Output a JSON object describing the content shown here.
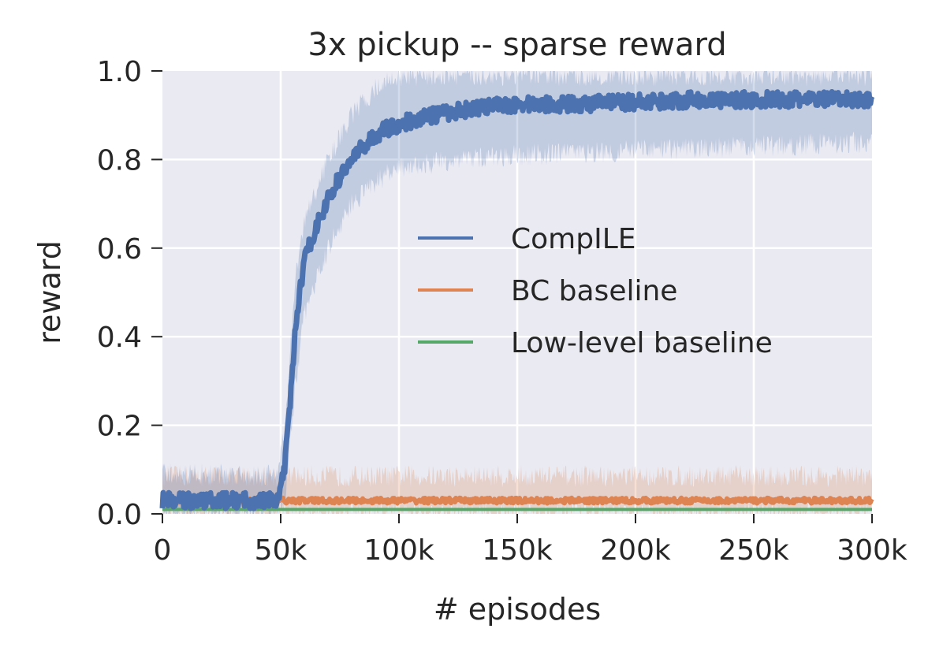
{
  "chart_data": {
    "type": "line",
    "title": "3x pickup -- sparse reward",
    "xlabel": "# episodes",
    "ylabel": "reward",
    "xlim": [
      0,
      300000
    ],
    "ylim": [
      0,
      1.0
    ],
    "x_ticks": [
      0,
      50000,
      100000,
      150000,
      200000,
      250000,
      300000
    ],
    "x_tick_labels": [
      "0",
      "50k",
      "100k",
      "150k",
      "200k",
      "250k",
      "300k"
    ],
    "y_ticks": [
      0,
      0.2,
      0.4,
      0.6,
      0.8,
      1.0
    ],
    "y_tick_labels": [
      "0.0",
      "0.2",
      "0.4",
      "0.6",
      "0.8",
      "1.0"
    ],
    "grid": true,
    "legend_position": "center-right",
    "series": [
      {
        "name": "CompILE",
        "color": "#4c72b0",
        "points": [
          [
            0,
            0.03
          ],
          [
            10000,
            0.03
          ],
          [
            20000,
            0.03
          ],
          [
            30000,
            0.03
          ],
          [
            40000,
            0.03
          ],
          [
            48000,
            0.03
          ],
          [
            50000,
            0.05
          ],
          [
            52000,
            0.12
          ],
          [
            54000,
            0.25
          ],
          [
            56000,
            0.4
          ],
          [
            58000,
            0.5
          ],
          [
            60000,
            0.57
          ],
          [
            63000,
            0.62
          ],
          [
            66000,
            0.66
          ],
          [
            70000,
            0.71
          ],
          [
            75000,
            0.76
          ],
          [
            80000,
            0.8
          ],
          [
            85000,
            0.83
          ],
          [
            90000,
            0.855
          ],
          [
            95000,
            0.87
          ],
          [
            100000,
            0.88
          ],
          [
            110000,
            0.895
          ],
          [
            120000,
            0.905
          ],
          [
            130000,
            0.915
          ],
          [
            140000,
            0.92
          ],
          [
            150000,
            0.925
          ],
          [
            175000,
            0.925
          ],
          [
            200000,
            0.93
          ],
          [
            225000,
            0.935
          ],
          [
            250000,
            0.935
          ],
          [
            275000,
            0.935
          ],
          [
            300000,
            0.935
          ]
        ],
        "band_lower": [
          [
            0,
            0.0
          ],
          [
            48000,
            0.0
          ],
          [
            52000,
            0.05
          ],
          [
            56000,
            0.28
          ],
          [
            60000,
            0.45
          ],
          [
            70000,
            0.6
          ],
          [
            80000,
            0.7
          ],
          [
            90000,
            0.75
          ],
          [
            100000,
            0.78
          ],
          [
            125000,
            0.8
          ],
          [
            150000,
            0.81
          ],
          [
            200000,
            0.82
          ],
          [
            250000,
            0.83
          ],
          [
            300000,
            0.84
          ]
        ],
        "band_upper": [
          [
            0,
            0.09
          ],
          [
            48000,
            0.09
          ],
          [
            52000,
            0.2
          ],
          [
            56000,
            0.52
          ],
          [
            60000,
            0.66
          ],
          [
            70000,
            0.8
          ],
          [
            80000,
            0.9
          ],
          [
            90000,
            0.96
          ],
          [
            100000,
            0.99
          ],
          [
            125000,
            0.99
          ],
          [
            150000,
            0.99
          ],
          [
            200000,
            0.99
          ],
          [
            250000,
            0.99
          ],
          [
            300000,
            0.99
          ]
        ]
      },
      {
        "name": "BC baseline",
        "color": "#dd8452",
        "points": [
          [
            0,
            0.03
          ],
          [
            300000,
            0.03
          ]
        ],
        "band_lower": [
          [
            0,
            0.0
          ],
          [
            300000,
            0.0
          ]
        ],
        "band_upper": [
          [
            0,
            0.085
          ],
          [
            300000,
            0.085
          ]
        ]
      },
      {
        "name": "Low-level baseline",
        "color": "#55a868",
        "points": [
          [
            0,
            0.01
          ],
          [
            300000,
            0.01
          ]
        ]
      }
    ]
  }
}
